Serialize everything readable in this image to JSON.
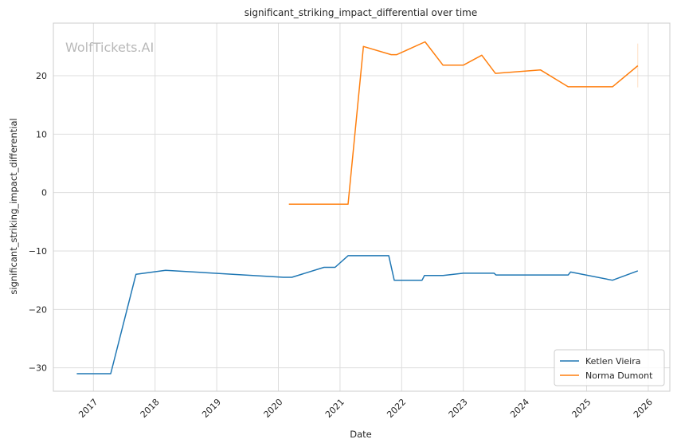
{
  "chart_data": {
    "type": "line",
    "title": "significant_striking_impact_differential over time",
    "xlabel": "Date",
    "ylabel": "significant_striking_impact_differential",
    "watermark": "WolfTickets.AI",
    "xlim": [
      2016.35,
      2026.35
    ],
    "ylim": [
      -34,
      29
    ],
    "x_ticks": [
      "2017",
      "2018",
      "2019",
      "2020",
      "2021",
      "2022",
      "2023",
      "2024",
      "2025",
      "2026"
    ],
    "y_ticks": [
      20,
      10,
      0,
      -10,
      -20,
      -30
    ],
    "y_tick_labels": [
      "20",
      "10",
      "0",
      "−10",
      "−20",
      "−30"
    ],
    "grid": true,
    "legend_position": "bottom-right",
    "series": [
      {
        "name": "Ketlen Vieira",
        "color": "#1f77b4",
        "x": [
          2016.73,
          2017.28,
          2017.69,
          2018.17,
          2020.08,
          2020.22,
          2020.74,
          2020.92,
          2021.13,
          2021.79,
          2021.88,
          2022.33,
          2022.37,
          2022.67,
          2023.0,
          2023.5,
          2023.53,
          2024.7,
          2024.74,
          2025.42,
          2025.83
        ],
        "y": [
          -31,
          -31,
          -14,
          -13.3,
          -14.5,
          -14.5,
          -12.8,
          -12.8,
          -10.8,
          -10.8,
          -15,
          -15,
          -14.2,
          -14.2,
          -13.8,
          -13.8,
          -14.1,
          -14.1,
          -13.6,
          -15,
          -13.4
        ]
      },
      {
        "name": "Norma Dumont",
        "color": "#ff7f0e",
        "x": [
          2020.17,
          2021.13,
          2021.38,
          2021.83,
          2021.92,
          2022.38,
          2022.67,
          2023.0,
          2023.3,
          2023.52,
          2024.25,
          2024.7,
          2025.42,
          2025.83
        ],
        "y": [
          -2,
          -2,
          25,
          23.6,
          23.6,
          25.8,
          21.8,
          21.8,
          23.5,
          20.4,
          21,
          18.1,
          18.1,
          21.7
        ]
      }
    ]
  }
}
